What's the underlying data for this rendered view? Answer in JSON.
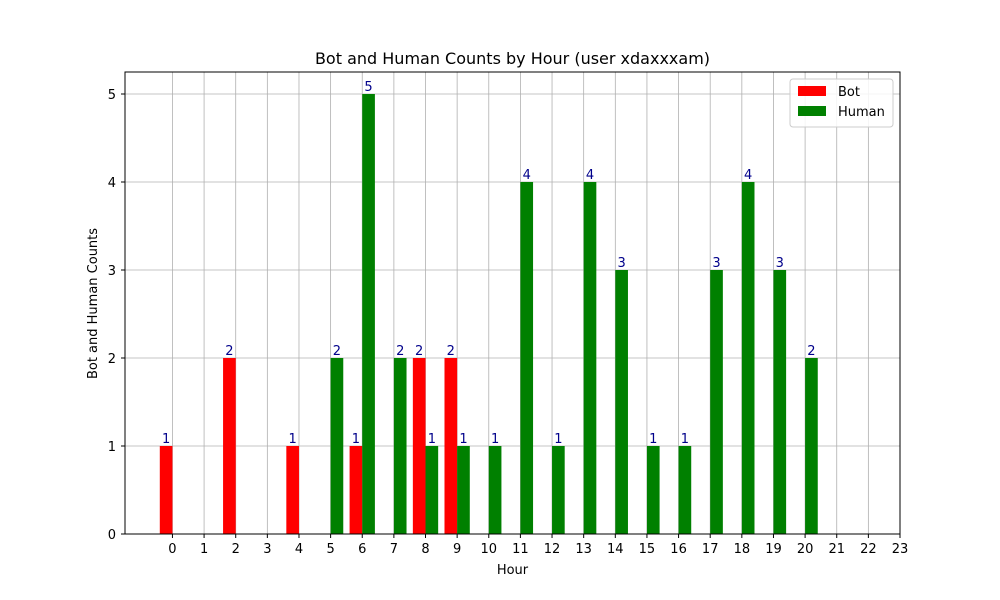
{
  "chart_data": {
    "type": "bar",
    "title": "Bot and Human Counts by Hour (user xdaxxxam)",
    "xlabel": "Hour",
    "ylabel": "Bot and Human Counts",
    "x_ticks": [
      "0",
      "1",
      "2",
      "3",
      "4",
      "5",
      "6",
      "7",
      "8",
      "9",
      "10",
      "11",
      "12",
      "13",
      "14",
      "15",
      "16",
      "17",
      "18",
      "19",
      "20",
      "21",
      "22",
      "23"
    ],
    "y_ticks": [
      "0",
      "1",
      "2",
      "3",
      "4",
      "5"
    ],
    "ylim": [
      0,
      5.25
    ],
    "grid": true,
    "legend_position": "top-right",
    "series": [
      {
        "name": "Bot",
        "color": "#ff0000",
        "points": [
          {
            "hour": 0,
            "value": 1
          },
          {
            "hour": 2,
            "value": 2
          },
          {
            "hour": 4,
            "value": 1
          },
          {
            "hour": 6,
            "value": 1
          },
          {
            "hour": 8,
            "value": 2
          },
          {
            "hour": 9,
            "value": 2
          }
        ]
      },
      {
        "name": "Human",
        "color": "#008000",
        "points": [
          {
            "hour": 5,
            "value": 2
          },
          {
            "hour": 6,
            "value": 5
          },
          {
            "hour": 7,
            "value": 2
          },
          {
            "hour": 8,
            "value": 1
          },
          {
            "hour": 9,
            "value": 1
          },
          {
            "hour": 10,
            "value": 1
          },
          {
            "hour": 11,
            "value": 4
          },
          {
            "hour": 12,
            "value": 1
          },
          {
            "hour": 13,
            "value": 4
          },
          {
            "hour": 14,
            "value": 3
          },
          {
            "hour": 15,
            "value": 1
          },
          {
            "hour": 16,
            "value": 1
          },
          {
            "hour": 17,
            "value": 3
          },
          {
            "hour": 18,
            "value": 4
          },
          {
            "hour": 19,
            "value": 3
          },
          {
            "hour": 20,
            "value": 2
          }
        ]
      }
    ],
    "data_label_color": "#00008b"
  }
}
